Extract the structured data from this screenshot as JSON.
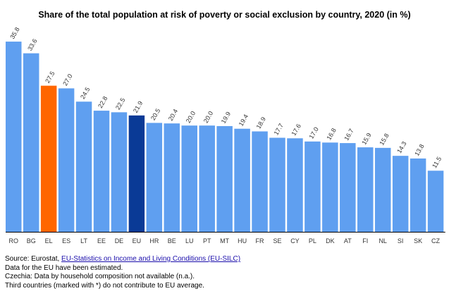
{
  "chart_data": {
    "type": "bar",
    "title": "Share of the total population at risk of poverty or social exclusion by country, 2020 (in %)",
    "xlabel": "",
    "ylabel": "",
    "ylim": [
      0,
      37
    ],
    "grid": false,
    "legend": "none",
    "categories": [
      "RO",
      "BG",
      "EL",
      "ES",
      "LT",
      "EE",
      "DE",
      "EU",
      "HR",
      "BE",
      "LU",
      "PT",
      "MT",
      "HU",
      "FR",
      "SE",
      "CY",
      "PL",
      "DK",
      "AT",
      "FI",
      "NL",
      "SI",
      "SK",
      "CZ"
    ],
    "values": [
      35.8,
      33.6,
      27.5,
      27.0,
      24.5,
      22.8,
      22.5,
      21.9,
      20.5,
      20.4,
      20.0,
      20.0,
      19.9,
      19.4,
      18.9,
      17.7,
      17.6,
      17.0,
      16.8,
      16.7,
      15.9,
      15.8,
      14.3,
      13.8,
      11.5
    ],
    "value_labels": [
      "35.8",
      "33.6",
      "27.5",
      "27.0",
      "24.5",
      "22.8",
      "22.5",
      "21.9",
      "20.5",
      "20.4",
      "20.0",
      "20.0",
      "19.9",
      "19.4",
      "18.9",
      "17.7",
      "17.6",
      "17.0",
      "16.8",
      "16.7",
      "15.9",
      "15.8",
      "14.3",
      "13.8",
      "11.5"
    ],
    "colors": {
      "default": "#5f9ff0",
      "highlight": "#ff6600",
      "eu": "#0a3a96",
      "axis": "#000000"
    },
    "highlight_category": "EL",
    "eu_category": "EU"
  },
  "notes": {
    "source_prefix": "Source: Eurostat, ",
    "source_link": "EU-Statistics on Income and Living Conditions (EU-SILC)",
    "line2": "Data for the EU have been estimated.",
    "line3": "Czechia: Data by household composition not available (n.a.).",
    "line4": "Third countries (marked with *) do not contribute to EU average."
  }
}
